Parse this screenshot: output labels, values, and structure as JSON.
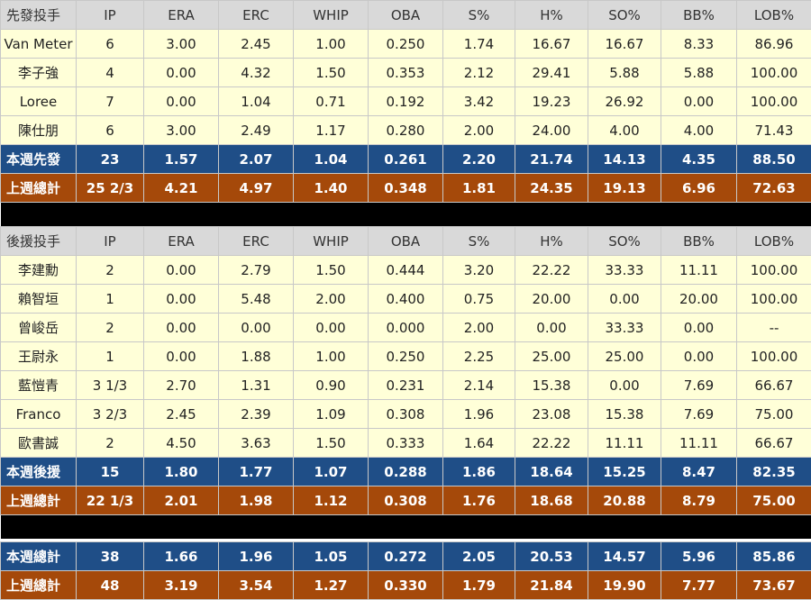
{
  "columns": [
    "IP",
    "ERA",
    "ERC",
    "WHIP",
    "OBA",
    "S%",
    "H%",
    "SO%",
    "BB%",
    "LOB%"
  ],
  "starters": {
    "header": "先發投手",
    "rows": [
      [
        "Van Meter",
        "6",
        "3.00",
        "2.45",
        "1.00",
        "0.250",
        "1.74",
        "16.67",
        "16.67",
        "8.33",
        "86.96"
      ],
      [
        "李子強",
        "4",
        "0.00",
        "4.32",
        "1.50",
        "0.353",
        "2.12",
        "29.41",
        "5.88",
        "5.88",
        "100.00"
      ],
      [
        "Loree",
        "7",
        "0.00",
        "1.04",
        "0.71",
        "0.192",
        "3.42",
        "19.23",
        "26.92",
        "0.00",
        "100.00"
      ],
      [
        "陳仕朋",
        "6",
        "3.00",
        "2.49",
        "1.17",
        "0.280",
        "2.00",
        "24.00",
        "4.00",
        "4.00",
        "71.43"
      ]
    ],
    "this_week": [
      "本週先發",
      "23",
      "1.57",
      "2.07",
      "1.04",
      "0.261",
      "2.20",
      "21.74",
      "14.13",
      "4.35",
      "88.50"
    ],
    "last_week": [
      "上週總計",
      "25 2/3",
      "4.21",
      "4.97",
      "1.40",
      "0.348",
      "1.81",
      "24.35",
      "19.13",
      "6.96",
      "72.63"
    ]
  },
  "relievers": {
    "header": "後援投手",
    "rows": [
      [
        "李建勳",
        "2",
        "0.00",
        "2.79",
        "1.50",
        "0.444",
        "3.20",
        "22.22",
        "33.33",
        "11.11",
        "100.00"
      ],
      [
        "賴智垣",
        "1",
        "0.00",
        "5.48",
        "2.00",
        "0.400",
        "0.75",
        "20.00",
        "0.00",
        "20.00",
        "100.00"
      ],
      [
        "曾峻岳",
        "2",
        "0.00",
        "0.00",
        "0.00",
        "0.000",
        "2.00",
        "0.00",
        "33.33",
        "0.00",
        "--"
      ],
      [
        "王尉永",
        "1",
        "0.00",
        "1.88",
        "1.00",
        "0.250",
        "2.25",
        "25.00",
        "25.00",
        "0.00",
        "100.00"
      ],
      [
        "藍愷青",
        "3 1/3",
        "2.70",
        "1.31",
        "0.90",
        "0.231",
        "2.14",
        "15.38",
        "0.00",
        "7.69",
        "66.67"
      ],
      [
        "Franco",
        "3 2/3",
        "2.45",
        "2.39",
        "1.09",
        "0.308",
        "1.96",
        "23.08",
        "15.38",
        "7.69",
        "75.00"
      ],
      [
        "歐書誠",
        "2",
        "4.50",
        "3.63",
        "1.50",
        "0.333",
        "1.64",
        "22.22",
        "11.11",
        "11.11",
        "66.67"
      ]
    ],
    "this_week": [
      "本週後援",
      "15",
      "1.80",
      "1.77",
      "1.07",
      "0.288",
      "1.86",
      "18.64",
      "15.25",
      "8.47",
      "82.35"
    ],
    "last_week": [
      "上週總計",
      "22 1/3",
      "2.01",
      "1.98",
      "1.12",
      "0.308",
      "1.76",
      "18.68",
      "20.88",
      "8.79",
      "75.00"
    ]
  },
  "totals": {
    "this_week": [
      "本週總計",
      "38",
      "1.66",
      "1.96",
      "1.05",
      "0.272",
      "2.05",
      "20.53",
      "14.57",
      "5.96",
      "85.86"
    ],
    "last_week": [
      "上週總計",
      "48",
      "3.19",
      "3.54",
      "1.27",
      "0.330",
      "1.79",
      "21.84",
      "19.90",
      "7.77",
      "73.67"
    ]
  }
}
